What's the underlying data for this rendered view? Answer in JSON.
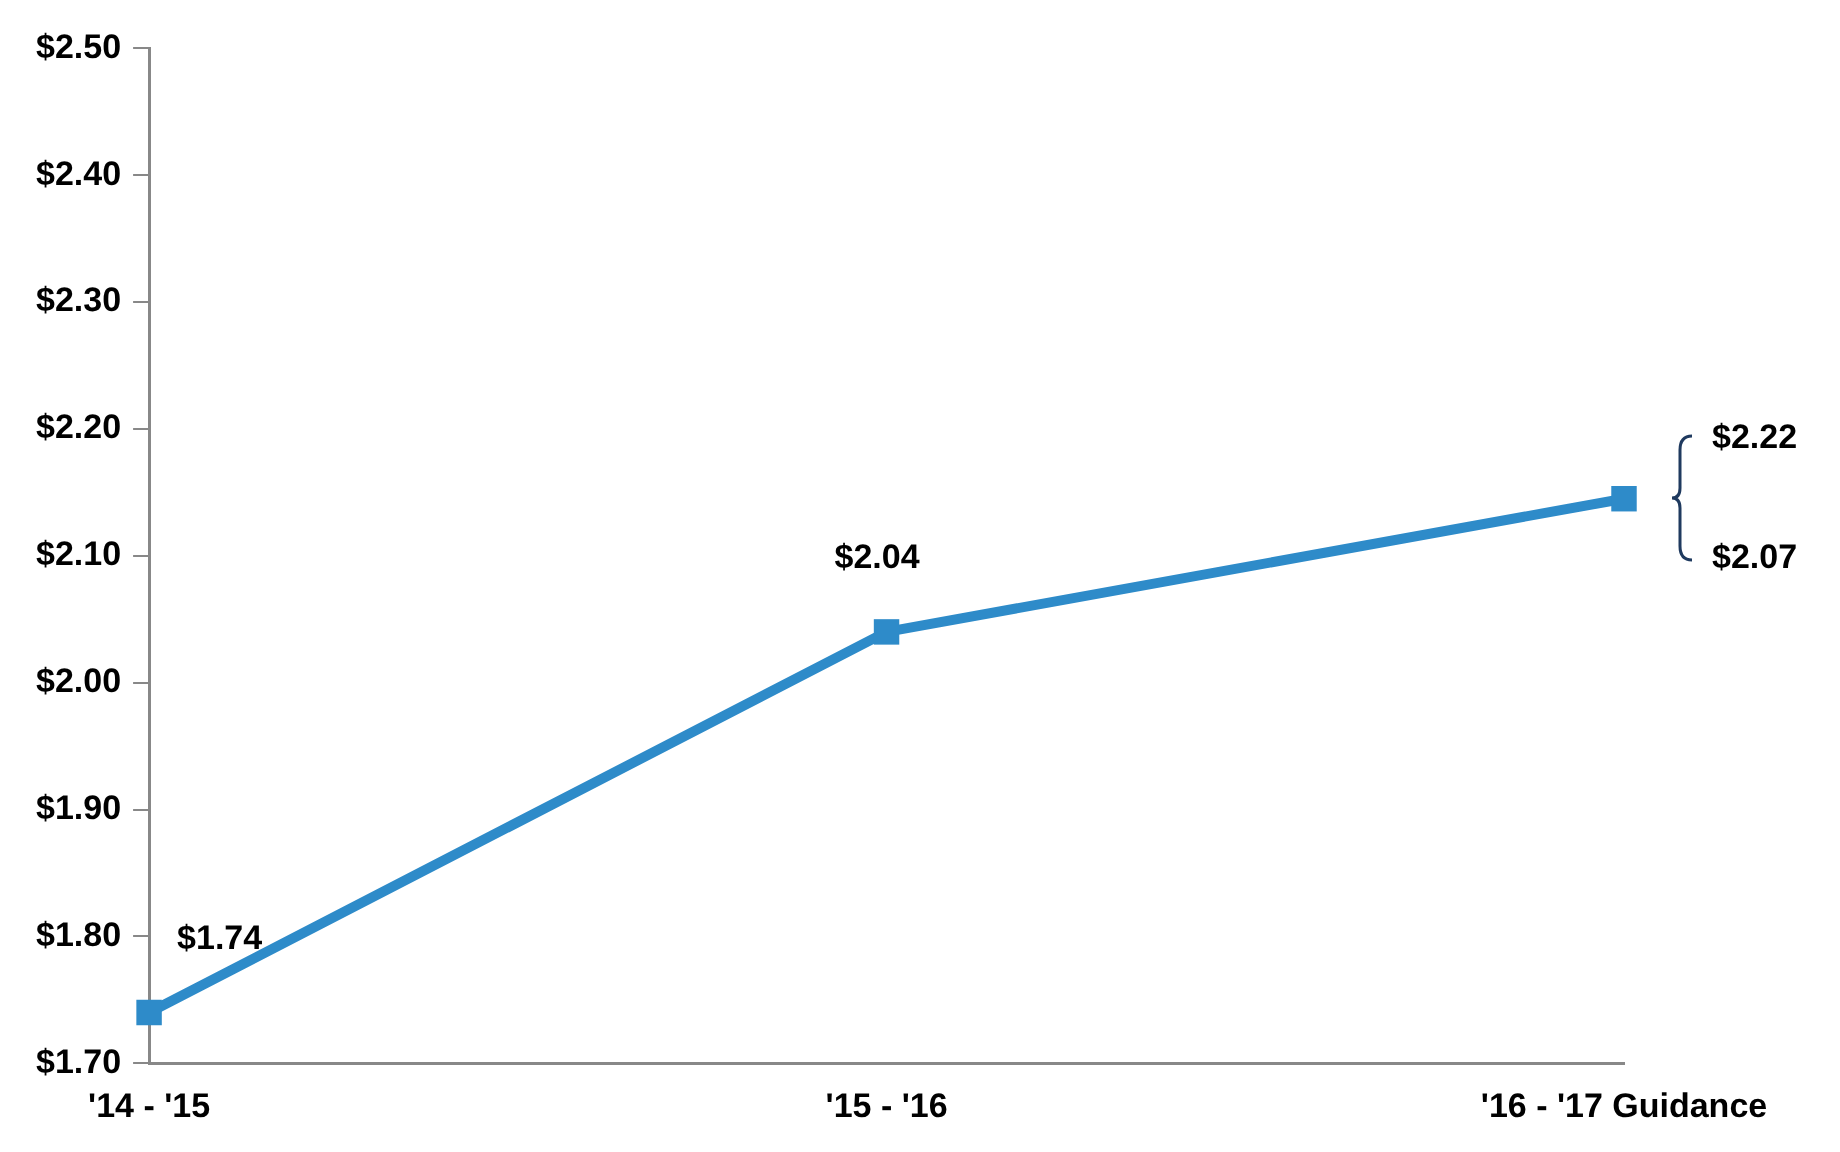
{
  "chart_data": {
    "type": "line",
    "categories": [
      "'14 - '15",
      "'15 - '16",
      "'16 - '17 Guidance"
    ],
    "values": [
      1.74,
      2.04,
      2.145
    ],
    "value_labels": [
      "$1.74",
      "$2.04",
      null
    ],
    "color": "#2e8bc9",
    "marker": "square",
    "line_style": "solid",
    "grid": false,
    "legend": false,
    "ylim": [
      1.7,
      2.5
    ],
    "yticks": [
      {
        "value": 1.7,
        "label": "$1.70"
      },
      {
        "value": 1.8,
        "label": "$1.80"
      },
      {
        "value": 1.9,
        "label": "$1.90"
      },
      {
        "value": 2.0,
        "label": "$2.00"
      },
      {
        "value": 2.1,
        "label": "$2.10"
      },
      {
        "value": 2.2,
        "label": "$2.20"
      },
      {
        "value": 2.3,
        "label": "$2.30"
      },
      {
        "value": 2.4,
        "label": "$2.40"
      },
      {
        "value": 2.5,
        "label": "$2.50"
      }
    ],
    "annotations": [
      "$2.22",
      "$2.07"
    ]
  }
}
